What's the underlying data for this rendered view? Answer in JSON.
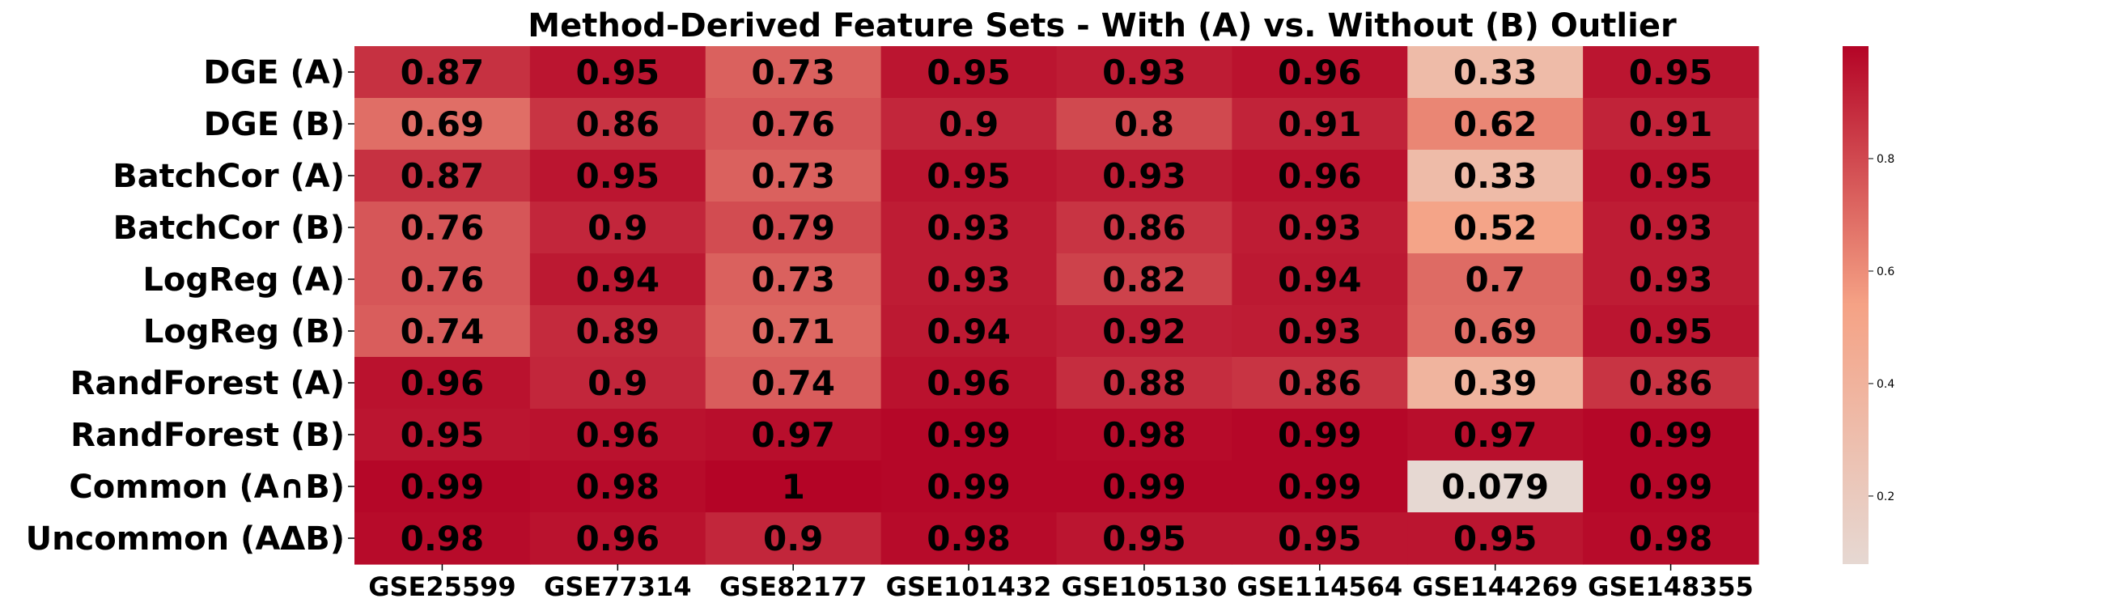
{
  "chart_data": {
    "type": "heatmap",
    "title": "Method-Derived Feature Sets - With (A) vs. Without (B) Outlier",
    "columns": [
      "GSE25599",
      "GSE77314",
      "GSE82177",
      "GSE101432",
      "GSE105130",
      "GSE114564",
      "GSE144269",
      "GSE148355"
    ],
    "rows": [
      "DGE (A)",
      "DGE  (B)",
      "BatchCor (A)",
      "BatchCor  (B)",
      "LogReg (A)",
      "LogReg  (B)",
      "RandForest (A)",
      "RandForest  (B)",
      "Common (A∩B)",
      "Uncommon (AΔB)"
    ],
    "values": [
      [
        0.87,
        0.95,
        0.73,
        0.95,
        0.93,
        0.96,
        0.33,
        0.95
      ],
      [
        0.69,
        0.86,
        0.76,
        0.9,
        0.8,
        0.91,
        0.62,
        0.91
      ],
      [
        0.87,
        0.95,
        0.73,
        0.95,
        0.93,
        0.96,
        0.33,
        0.95
      ],
      [
        0.76,
        0.9,
        0.79,
        0.93,
        0.86,
        0.93,
        0.52,
        0.93
      ],
      [
        0.76,
        0.94,
        0.73,
        0.93,
        0.82,
        0.94,
        0.7,
        0.93
      ],
      [
        0.74,
        0.89,
        0.71,
        0.94,
        0.92,
        0.93,
        0.69,
        0.95
      ],
      [
        0.96,
        0.9,
        0.74,
        0.96,
        0.88,
        0.86,
        0.39,
        0.86
      ],
      [
        0.95,
        0.96,
        0.97,
        0.99,
        0.98,
        0.99,
        0.97,
        0.99
      ],
      [
        0.99,
        0.98,
        1,
        0.99,
        0.99,
        0.99,
        0.079,
        0.99
      ],
      [
        0.98,
        0.96,
        0.9,
        0.98,
        0.95,
        0.95,
        0.95,
        0.98
      ]
    ],
    "value_labels": [
      [
        "0.87",
        "0.95",
        "0.73",
        "0.95",
        "0.93",
        "0.96",
        "0.33",
        "0.95"
      ],
      [
        "0.69",
        "0.86",
        "0.76",
        "0.9",
        "0.8",
        "0.91",
        "0.62",
        "0.91"
      ],
      [
        "0.87",
        "0.95",
        "0.73",
        "0.95",
        "0.93",
        "0.96",
        "0.33",
        "0.95"
      ],
      [
        "0.76",
        "0.9",
        "0.79",
        "0.93",
        "0.86",
        "0.93",
        "0.52",
        "0.93"
      ],
      [
        "0.76",
        "0.94",
        "0.73",
        "0.93",
        "0.82",
        "0.94",
        "0.7",
        "0.93"
      ],
      [
        "0.74",
        "0.89",
        "0.71",
        "0.94",
        "0.92",
        "0.93",
        "0.69",
        "0.95"
      ],
      [
        "0.96",
        "0.9",
        "0.74",
        "0.96",
        "0.88",
        "0.86",
        "0.39",
        "0.86"
      ],
      [
        "0.95",
        "0.96",
        "0.97",
        "0.99",
        "0.98",
        "0.99",
        "0.97",
        "0.99"
      ],
      [
        "0.99",
        "0.98",
        "1",
        "0.99",
        "0.99",
        "0.99",
        "0.079",
        "0.99"
      ],
      [
        "0.98",
        "0.96",
        "0.9",
        "0.98",
        "0.95",
        "0.95",
        "0.95",
        "0.98"
      ]
    ],
    "colorbar": {
      "ticks": [
        0.2,
        0.4,
        0.6,
        0.8
      ],
      "tick_labels": [
        "0.2",
        "0.4",
        "0.6",
        "0.8"
      ],
      "range": [
        0.079,
        1.0
      ]
    },
    "colormap": {
      "low": "#e6d8d2",
      "mid": "#f5a285",
      "high": "#b40426"
    },
    "grid": false,
    "legend": "colorbar-right"
  }
}
